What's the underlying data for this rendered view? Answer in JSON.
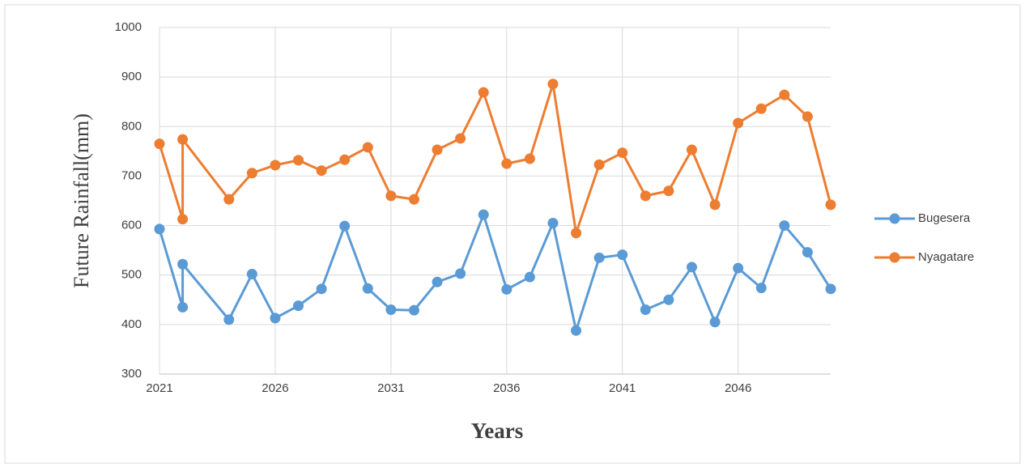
{
  "chart_data": {
    "type": "line",
    "x_label": "Years",
    "y_label": "Future Rainfall(mm)",
    "x": [
      2021,
      2022,
      2022,
      2024,
      2025,
      2026,
      2027,
      2028,
      2029,
      2030,
      2031,
      2032,
      2033,
      2034,
      2035,
      2036,
      2037,
      2038,
      2039,
      2040,
      2041,
      2042,
      2043,
      2044,
      2045,
      2046,
      2047,
      2048,
      2049,
      2050
    ],
    "series": [
      {
        "name": "Bugesera",
        "color": "#5b9bd5",
        "values": [
          593,
          435,
          522,
          410,
          502,
          413,
          438,
          472,
          599,
          473,
          430,
          429,
          486,
          503,
          622,
          471,
          496,
          605,
          388,
          535,
          541,
          430,
          450,
          516,
          405,
          514,
          474,
          600,
          546,
          472
        ]
      },
      {
        "name": "Nyagatare",
        "color": "#ed7d31",
        "values": [
          765,
          613,
          774,
          653,
          706,
          722,
          732,
          711,
          733,
          758,
          660,
          653,
          753,
          776,
          869,
          725,
          735,
          886,
          585,
          723,
          747,
          660,
          670,
          753,
          642,
          807,
          836,
          864,
          820,
          642
        ]
      }
    ],
    "xlim": [
      2021,
      2050
    ],
    "xticks": [
      2021,
      2026,
      2031,
      2036,
      2041,
      2046
    ],
    "ylim": [
      300,
      1000
    ],
    "yticks": [
      300,
      400,
      500,
      600,
      700,
      800,
      900,
      1000
    ],
    "grid": true,
    "legend": "right"
  }
}
